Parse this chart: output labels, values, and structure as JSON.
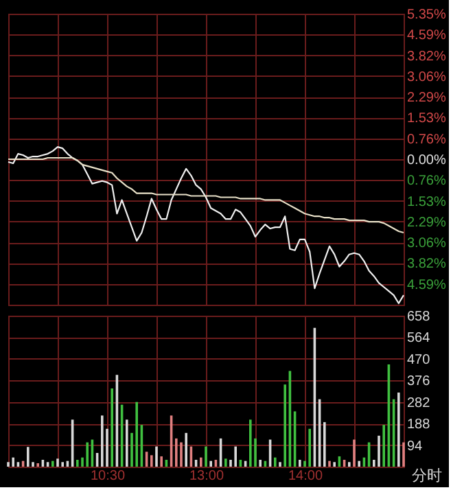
{
  "chart_data": [
    {
      "type": "line",
      "categories": [
        null,
        null,
        null,
        null,
        null,
        null,
        null,
        null,
        null,
        null,
        null,
        null,
        null,
        null,
        null,
        null,
        null,
        null,
        null,
        null,
        null,
        null,
        null,
        null,
        null,
        null,
        null,
        null,
        null,
        null,
        null,
        null,
        null,
        null,
        null,
        null,
        null,
        null,
        null,
        null,
        null,
        null,
        null,
        null,
        null,
        null,
        null,
        null,
        null,
        null,
        null,
        null,
        null,
        null,
        null,
        null,
        null,
        null,
        null,
        null,
        null,
        null,
        null,
        null,
        null,
        null,
        null,
        null,
        null,
        null,
        null,
        null,
        null,
        null,
        null,
        null,
        null,
        null,
        null,
        null,
        null
      ],
      "ylim": [
        -5.35,
        5.35
      ],
      "yticks": [
        {
          "value": 5.35,
          "label": "5.35%"
        },
        {
          "value": 4.59,
          "label": "4.59%"
        },
        {
          "value": 3.82,
          "label": "3.82%"
        },
        {
          "value": 3.06,
          "label": "3.06%"
        },
        {
          "value": 2.29,
          "label": "2.29%"
        },
        {
          "value": 1.53,
          "label": "1.53%"
        },
        {
          "value": 0.76,
          "label": "0.76%"
        },
        {
          "value": 0,
          "label": "0.00%"
        },
        {
          "value": -0.76,
          "label": "0.76%"
        },
        {
          "value": -1.53,
          "label": "1.53%"
        },
        {
          "value": -2.29,
          "label": "2.29%"
        },
        {
          "value": -3.06,
          "label": "3.06%"
        },
        {
          "value": -3.82,
          "label": "3.82%"
        },
        {
          "value": -4.59,
          "label": "4.59%"
        }
      ],
      "tick_labels": "y",
      "grid": true,
      "marker": "none",
      "line_style": "solid",
      "series": [
        {
          "color": "#f0f0f0",
          "values": [
            -0.1,
            -0.15,
            0.2,
            0.15,
            0.05,
            0.1,
            0.1,
            0.15,
            0.2,
            0.3,
            0.45,
            0.4,
            0.2,
            0.05,
            -0.05,
            -0.2,
            -0.55,
            -0.9,
            -0.85,
            -0.8,
            -0.85,
            -0.95,
            -2.0,
            -1.5,
            -2.0,
            -2.5,
            -3.0,
            -2.7,
            -2.1,
            -1.45,
            -1.85,
            -2.2,
            -2.2,
            -1.5,
            -1.1,
            -0.7,
            -0.35,
            -0.6,
            -0.95,
            -1.1,
            -1.4,
            -1.8,
            -1.9,
            -2.0,
            -2.2,
            -2.2,
            -1.85,
            -1.95,
            -2.2,
            -2.45,
            -2.85,
            -2.6,
            -2.4,
            -2.55,
            -2.5,
            -2.5,
            -2.1,
            -3.3,
            -3.35,
            -2.95,
            -2.95,
            -3.4,
            -4.75,
            -4.2,
            -3.7,
            -3.2,
            -3.5,
            -3.95,
            -3.75,
            -3.5,
            -3.45,
            -3.5,
            -3.75,
            -4.1,
            -4.3,
            -4.55,
            -4.7,
            -4.85,
            -5.0,
            -5.3,
            -5.0
          ]
        },
        {
          "color": "#e8e0c8",
          "values": [
            0.0,
            0.0,
            0.0,
            0.0,
            0.0,
            0.0,
            0.0,
            0.0,
            0.05,
            0.05,
            0.05,
            0.05,
            0.05,
            0.05,
            -0.05,
            -0.2,
            -0.25,
            -0.3,
            -0.35,
            -0.4,
            -0.45,
            -0.5,
            -0.7,
            -0.85,
            -1.0,
            -1.1,
            -1.25,
            -1.25,
            -1.25,
            -1.25,
            -1.3,
            -1.3,
            -1.3,
            -1.3,
            -1.3,
            -1.3,
            -1.3,
            -1.35,
            -1.35,
            -1.35,
            -1.35,
            -1.35,
            -1.35,
            -1.4,
            -1.4,
            -1.4,
            -1.4,
            -1.45,
            -1.45,
            -1.45,
            -1.45,
            -1.45,
            -1.5,
            -1.5,
            -1.5,
            -1.5,
            -1.6,
            -1.7,
            -1.8,
            -1.9,
            -2.0,
            -2.05,
            -2.1,
            -2.1,
            -2.15,
            -2.15,
            -2.2,
            -2.2,
            -2.2,
            -2.25,
            -2.25,
            -2.25,
            -2.25,
            -2.3,
            -2.3,
            -2.3,
            -2.35,
            -2.45,
            -2.55,
            -2.65,
            -2.7
          ]
        }
      ]
    },
    {
      "type": "bar",
      "categories": [
        null,
        null,
        null,
        null,
        null,
        null,
        null,
        null,
        null,
        null,
        null,
        null,
        null,
        null,
        null,
        null,
        null,
        null,
        null,
        null,
        "10:30",
        null,
        null,
        null,
        null,
        null,
        null,
        null,
        null,
        null,
        null,
        null,
        null,
        null,
        null,
        null,
        null,
        null,
        null,
        null,
        "13:00",
        null,
        null,
        null,
        null,
        null,
        null,
        null,
        null,
        null,
        null,
        null,
        null,
        null,
        null,
        null,
        null,
        null,
        null,
        null,
        "14:00",
        null,
        null,
        null,
        null,
        null,
        null,
        null,
        null,
        null,
        null,
        null,
        null,
        null,
        null,
        null,
        null,
        null,
        null,
        null,
        null
      ],
      "ylim": [
        0,
        658
      ],
      "yticks": [
        94,
        188,
        282,
        376,
        470,
        564,
        658
      ],
      "grid": true,
      "annotations": [
        "分时"
      ],
      "values": [
        20,
        40,
        20,
        25,
        86,
        20,
        15,
        30,
        20,
        25,
        35,
        20,
        25,
        205,
        30,
        40,
        106,
        118,
        60,
        223,
        165,
        341,
        400,
        270,
        205,
        147,
        282,
        182,
        65,
        50,
        88,
        45,
        30,
        223,
        123,
        106,
        147,
        88,
        30,
        40,
        88,
        25,
        30,
        123,
        35,
        30,
        88,
        30,
        25,
        205,
        123,
        30,
        25,
        118,
        40,
        20,
        358,
        417,
        241,
        30,
        25,
        165,
        605,
        294,
        194,
        25,
        20,
        45,
        30,
        20,
        118,
        25,
        40,
        106,
        30,
        135,
        182,
        446,
        294,
        323,
        106
      ],
      "colors": [
        "#d8d8d8",
        "#d8d8d8",
        "#d8d8d8",
        "#e08080",
        "#d8d8d8",
        "#d8d8d8",
        "#e08080",
        "#d8d8d8",
        "#d8d8d8",
        "#40c040",
        "#d8d8d8",
        "#d8d8d8",
        "#d8d8d8",
        "#d8d8d8",
        "#40c040",
        "#40c040",
        "#40c040",
        "#40c040",
        "#d8d8d8",
        "#d8d8d8",
        "#d8d8d8",
        "#40c040",
        "#d8d8d8",
        "#40c040",
        "#d8d8d8",
        "#40c040",
        "#40c040",
        "#40c040",
        "#e08080",
        "#e08080",
        "#d8d8d8",
        "#e08080",
        "#40c040",
        "#e08080",
        "#e08080",
        "#e08080",
        "#d8d8d8",
        "#e08080",
        "#d8d8d8",
        "#e08080",
        "#40c040",
        "#d8d8d8",
        "#e08080",
        "#d8d8d8",
        "#40c040",
        "#d8d8d8",
        "#d8d8d8",
        "#40c040",
        "#d8d8d8",
        "#40c040",
        "#40c040",
        "#d8d8d8",
        "#40c040",
        "#d8d8d8",
        "#40c040",
        "#d8d8d8",
        "#40c040",
        "#40c040",
        "#40c040",
        "#d8d8d8",
        "#40c040",
        "#40c040",
        "#d8d8d8",
        "#d8d8d8",
        "#d8d8d8",
        "#e08080",
        "#d8d8d8",
        "#40c040",
        "#e08080",
        "#d8d8d8",
        "#e08080",
        "#d8d8d8",
        "#40c040",
        "#40c040",
        "#d8d8d8",
        "#d8d8d8",
        "#40c040",
        "#40c040",
        "#40c040",
        "#d8d8d8",
        "#e08080"
      ]
    }
  ]
}
